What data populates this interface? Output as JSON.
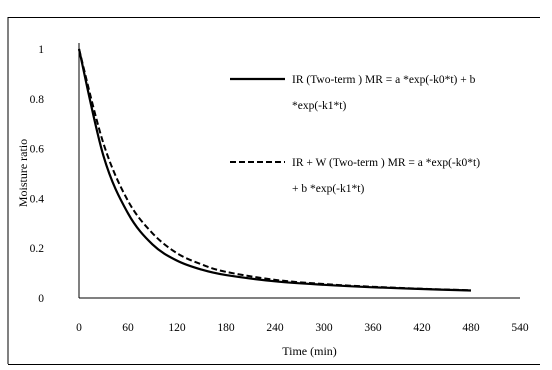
{
  "chart_data": {
    "type": "line",
    "title": "",
    "xlabel": "Time (min)",
    "ylabel": "Moisture ratio",
    "xlim": [
      0,
      540
    ],
    "ylim": [
      0,
      1
    ],
    "xticks": [
      0,
      60,
      120,
      180,
      240,
      300,
      360,
      420,
      480,
      540
    ],
    "yticks": [
      0,
      0.2,
      0.4,
      0.6,
      0.8,
      1
    ],
    "grid": false,
    "legend_position": "right",
    "series": [
      {
        "name_lines": [
          "IR (Two-term ) MR = a *exp(-k0*t) + b",
          "*exp(-k1*t)"
        ],
        "style": "solid",
        "color": "#000000",
        "x": [
          0,
          30,
          60,
          90,
          120,
          150,
          180,
          240,
          300,
          360,
          420,
          480
        ],
        "y": [
          1.0,
          0.57,
          0.34,
          0.215,
          0.15,
          0.114,
          0.092,
          0.067,
          0.053,
          0.043,
          0.036,
          0.03
        ]
      },
      {
        "name_lines": [
          "IR + W (Two-term ) MR = a *exp(-k0*t)",
          "+ b *exp(-k1*t)"
        ],
        "style": "dashed",
        "color": "#000000",
        "x": [
          0,
          30,
          60,
          90,
          120,
          150,
          180,
          240,
          300,
          360,
          420,
          480
        ],
        "y": [
          1.0,
          0.62,
          0.39,
          0.26,
          0.18,
          0.135,
          0.105,
          0.073,
          0.056,
          0.045,
          0.037,
          0.031
        ]
      }
    ]
  }
}
